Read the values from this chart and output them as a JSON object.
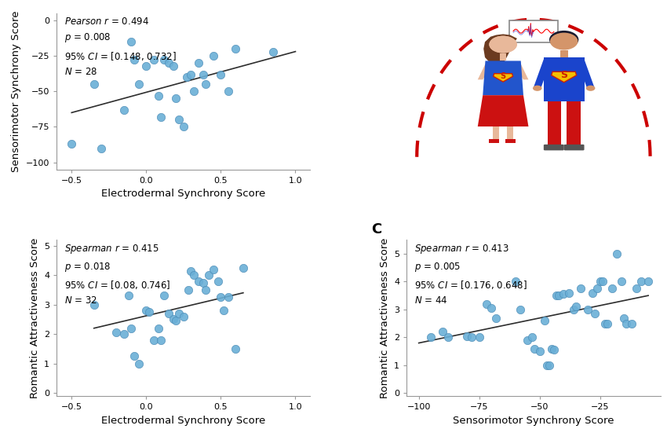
{
  "panel_A": {
    "xlabel": "Electrodermal Synchrony Score",
    "ylabel": "Sensorimotor Synchrony Score",
    "xlim": [
      -0.6,
      1.1
    ],
    "ylim": [
      -105,
      5
    ],
    "xticks": [
      -0.5,
      0.0,
      0.5,
      1.0
    ],
    "yticks": [
      -100,
      -75,
      -50,
      -25,
      0
    ],
    "x": [
      -0.5,
      -0.35,
      -0.3,
      -0.15,
      -0.1,
      -0.08,
      -0.05,
      0.0,
      0.05,
      0.08,
      0.1,
      0.12,
      0.15,
      0.18,
      0.2,
      0.22,
      0.25,
      0.27,
      0.3,
      0.32,
      0.35,
      0.38,
      0.4,
      0.45,
      0.5,
      0.55,
      0.6,
      0.85
    ],
    "y": [
      -87,
      -45,
      -90,
      -63,
      -15,
      -28,
      -45,
      -32,
      -28,
      -53,
      -68,
      -28,
      -30,
      -32,
      -55,
      -70,
      -75,
      -40,
      -38,
      -50,
      -30,
      -38,
      -45,
      -25,
      -38,
      -50,
      -20,
      -22
    ],
    "line_x": [
      -0.5,
      1.0
    ],
    "line_y": [
      -65,
      -22
    ],
    "stat_text": "Pearson r = 0.494\np = 0.008\n95% CI = [0.148, 0.732]\nN = 28"
  },
  "panel_B": {
    "xlabel": "Electrodermal Synchrony Score",
    "ylabel": "Romantic Attractiveness Score",
    "xlim": [
      -0.6,
      1.1
    ],
    "ylim": [
      -0.1,
      5.2
    ],
    "xticks": [
      -0.5,
      0.0,
      0.5,
      1.0
    ],
    "yticks": [
      0,
      1,
      2,
      3,
      4,
      5
    ],
    "x": [
      -0.35,
      -0.2,
      -0.15,
      -0.12,
      -0.1,
      -0.08,
      -0.05,
      0.0,
      0.02,
      0.05,
      0.08,
      0.1,
      0.12,
      0.15,
      0.18,
      0.2,
      0.22,
      0.25,
      0.28,
      0.3,
      0.32,
      0.35,
      0.38,
      0.4,
      0.42,
      0.45,
      0.48,
      0.5,
      0.52,
      0.55,
      0.6,
      0.65
    ],
    "y": [
      3.0,
      2.05,
      2.0,
      3.3,
      2.2,
      1.25,
      1.0,
      2.8,
      2.75,
      1.8,
      2.2,
      1.8,
      3.3,
      2.7,
      2.5,
      2.45,
      2.7,
      2.6,
      3.5,
      4.15,
      4.0,
      3.8,
      3.75,
      3.5,
      4.0,
      4.2,
      3.8,
      3.25,
      2.8,
      3.25,
      1.5,
      4.25
    ],
    "line_x": [
      -0.35,
      0.65
    ],
    "line_y": [
      2.2,
      3.4
    ],
    "stat_text": "Spearman r = 0.415\np = 0.018\n95% CI = [0.08, 0.746]\nN = 32"
  },
  "panel_C": {
    "xlabel": "Sensorimotor Synchrony Score",
    "ylabel": "Romantic Attractiveness Score",
    "xlim": [
      -105,
      0
    ],
    "ylim": [
      -0.1,
      5.5
    ],
    "xticks": [
      -100,
      -75,
      -50,
      -25
    ],
    "yticks": [
      0,
      1,
      2,
      3,
      4,
      5
    ],
    "x": [
      -95,
      -90,
      -88,
      -80,
      -78,
      -75,
      -72,
      -70,
      -68,
      -60,
      -58,
      -55,
      -53,
      -52,
      -50,
      -48,
      -47,
      -46,
      -45,
      -44,
      -43,
      -42,
      -40,
      -38,
      -36,
      -35,
      -33,
      -30,
      -28,
      -27,
      -26,
      -25,
      -24,
      -23,
      -22,
      -20,
      -18,
      -16,
      -15,
      -14,
      -12,
      -10,
      -8,
      -5
    ],
    "y": [
      2.0,
      2.2,
      2.0,
      2.05,
      2.0,
      2.0,
      3.2,
      3.05,
      2.7,
      4.0,
      3.0,
      1.9,
      2.0,
      1.6,
      1.5,
      2.6,
      1.0,
      1.0,
      1.6,
      1.55,
      3.5,
      3.5,
      3.55,
      3.6,
      3.0,
      3.1,
      3.75,
      3.0,
      3.6,
      2.85,
      3.75,
      4.0,
      4.0,
      2.5,
      2.5,
      3.75,
      5.0,
      4.0,
      2.7,
      2.5,
      2.5,
      3.75,
      4.0,
      4.0
    ],
    "line_x": [
      -100,
      -5
    ],
    "line_y": [
      1.8,
      3.5
    ],
    "stat_text": "Spearman r = 0.413\np = 0.005\n95% CI = [0.176, 0.648]\nN = 44"
  },
  "dot_color": "#6aafd6",
  "dot_edge_color": "#4a8ab5",
  "dot_size": 55,
  "line_color": "#2d2d2d",
  "bg_color": "#ffffff",
  "stat_fontsize": 8.5,
  "axis_label_fontsize": 9.5,
  "tick_fontsize": 8
}
